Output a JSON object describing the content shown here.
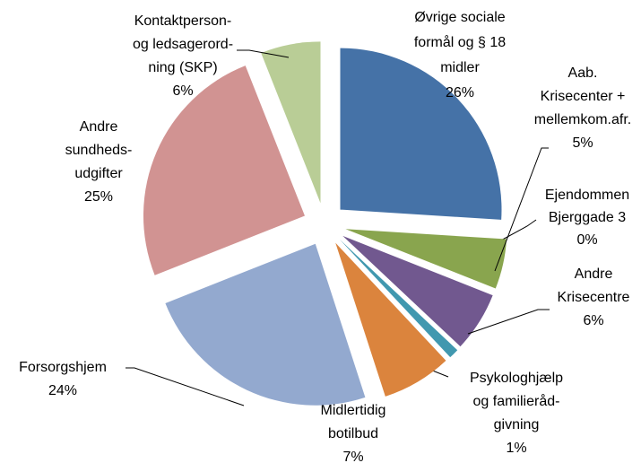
{
  "chart_data": {
    "type": "pie",
    "categories": [
      [
        "Øvrige sociale",
        "formål og § 18",
        "midler"
      ],
      [
        "Ejendommen",
        "Bjerggade 3"
      ],
      [
        "Aab.",
        "Krisecenter +",
        "mellemkom.afr."
      ],
      [
        "Andre",
        "Krisecentre"
      ],
      [
        "Psykologhjælp",
        "og familieråd-",
        "givning"
      ],
      [
        "Midlertidig",
        "botilbud"
      ],
      [
        "Forsorgshjem"
      ],
      [
        "Andre",
        "sundheds-",
        "udgifter"
      ],
      [
        "Kontaktperson-",
        "og ledsagerord-",
        "ning (SKP)"
      ]
    ],
    "values": [
      26,
      0,
      5,
      6,
      1,
      7,
      24,
      25,
      6
    ],
    "value_labels": [
      "26%",
      "0%",
      "5%",
      "6%",
      "1%",
      "7%",
      "24%",
      "25%",
      "6%"
    ],
    "colors": [
      "#4572a7",
      "#aa4643",
      "#89a54e",
      "#71588f",
      "#4198af",
      "#db843d",
      "#93a9cf",
      "#d19392",
      "#b9cd96"
    ]
  }
}
